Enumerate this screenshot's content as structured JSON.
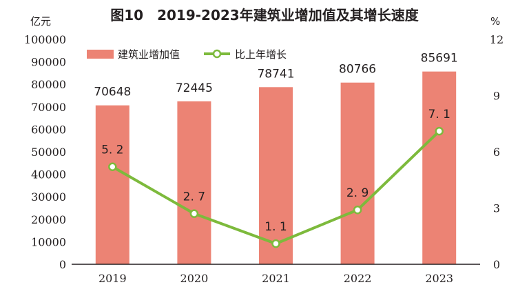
{
  "colors": {
    "bar": "#ec8374",
    "line": "#7dba3c",
    "marker_fill": "#ffffff",
    "plot_bg": "#ffffff",
    "grid": "#f7f7f7",
    "axis": "#231f20"
  },
  "chart_data": {
    "type": "bar",
    "title": "图10　2019-2023年建筑业增加值及其增长速度",
    "left_unit": "亿元",
    "right_unit": "%",
    "categories": [
      "2019",
      "2020",
      "2021",
      "2022",
      "2023"
    ],
    "ylim_left": [
      0,
      100000
    ],
    "yticks_left": [
      "0",
      "10000",
      "20000",
      "30000",
      "40000",
      "50000",
      "60000",
      "70000",
      "80000",
      "90000",
      "100000"
    ],
    "ylim_right": [
      0,
      12
    ],
    "yticks_right": [
      "0",
      "3",
      "6",
      "9",
      "12"
    ],
    "series": [
      {
        "name": "建筑业增加值",
        "kind": "bar",
        "axis": "left",
        "values": [
          70648,
          72445,
          78741,
          80766,
          85691
        ],
        "labels": [
          "70648",
          "72445",
          "78741",
          "80766",
          "85691"
        ]
      },
      {
        "name": "比上年增长",
        "kind": "line",
        "axis": "right",
        "values": [
          5.2,
          2.7,
          1.1,
          2.9,
          7.1
        ],
        "labels": [
          "5. 2",
          "2. 7",
          "1. 1",
          "2. 9",
          "7. 1"
        ]
      }
    ],
    "legend": {
      "placement": "top-left"
    },
    "grid": false
  }
}
